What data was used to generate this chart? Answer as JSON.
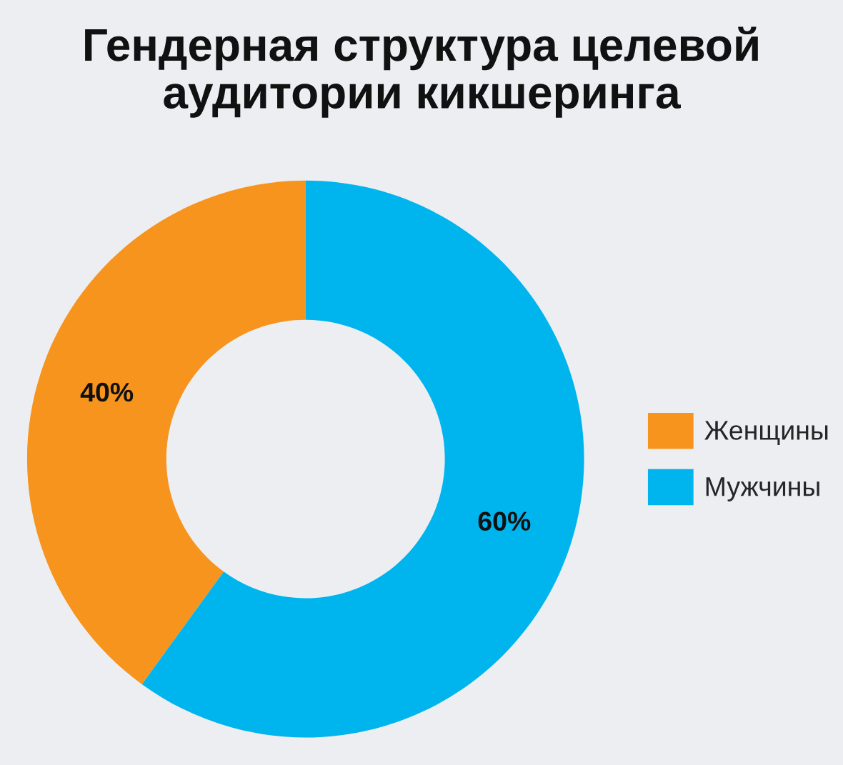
{
  "chart_data": {
    "type": "donut",
    "title": "Гендерная структура целевой\nаудитории кикшеринга",
    "categories": [
      "Женщины",
      "Мужчины"
    ],
    "values": [
      40,
      60
    ],
    "colors": [
      "#f7941d",
      "#00b4ee"
    ],
    "value_labels": [
      "40%",
      "60%"
    ],
    "legend": "right"
  }
}
